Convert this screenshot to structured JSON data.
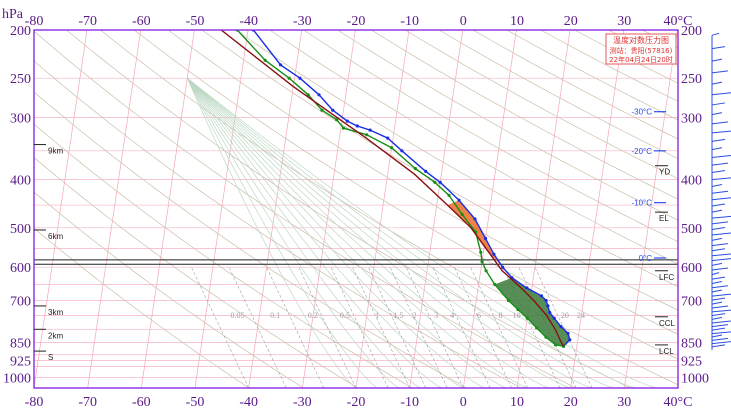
{
  "chart_data": {
    "type": "line",
    "title": "温度对数压力图",
    "station_label": "测站：贵阳(57816)",
    "time_label": "22年04月24日20时",
    "x_unit": "°C",
    "y_unit": "hPa",
    "xlim": [
      -80,
      40
    ],
    "ylim": [
      1050,
      200
    ],
    "y_scale": "log",
    "x_ticks": [
      -80,
      -70,
      -60,
      -50,
      -40,
      -30,
      -20,
      -10,
      0,
      10,
      20,
      30,
      40
    ],
    "x_tick_labels": [
      "-80",
      "-70",
      "-60",
      "-50",
      "-40",
      "-30",
      "-20",
      "-10",
      "0",
      "10",
      "20",
      "30",
      "40°C"
    ],
    "y_ticks": [
      200,
      250,
      300,
      400,
      500,
      600,
      700,
      850,
      925,
      1000
    ],
    "y_tick_labels": [
      "200",
      "250",
      "300",
      "400",
      "500",
      "600",
      "700",
      "850",
      "925",
      "1000"
    ],
    "height_markers": [
      {
        "label": "9km",
        "p": 340
      },
      {
        "label": "6km",
        "p": 505
      },
      {
        "label": "3km",
        "p": 718
      },
      {
        "label": "2km",
        "p": 800
      },
      {
        "label": "S",
        "p": 885
      }
    ],
    "levels_right": [
      {
        "label": "YD",
        "p": 375
      },
      {
        "label": "EL",
        "p": 465
      },
      {
        "label": "LFC",
        "p": 610
      },
      {
        "label": "CCL",
        "p": 755
      },
      {
        "label": "LCL",
        "p": 860
      }
    ],
    "isotherm_labels": [
      {
        "label": "-30°C",
        "p": 292
      },
      {
        "label": "-20°C",
        "p": 350
      },
      {
        "label": "-10°C",
        "p": 445
      },
      {
        "label": "0°C",
        "p": 575
      }
    ],
    "mixing_ratio_labels": [
      "0.05",
      "0.1",
      "0.2",
      "0.5",
      "1",
      "1.5",
      "2",
      "3",
      "4",
      "6",
      "8",
      "10",
      "16",
      "20",
      "24"
    ],
    "freezing_band_hpa": [
      580,
      592
    ],
    "series": [
      {
        "name": "temperature",
        "color": "#1a2ee6",
        "points": [
          [
            -49,
            200
          ],
          [
            -43,
            235
          ],
          [
            -39,
            250
          ],
          [
            -35,
            270
          ],
          [
            -32,
            290
          ],
          [
            -29,
            305
          ],
          [
            -27,
            312
          ],
          [
            -24.5,
            318
          ],
          [
            -21,
            330
          ],
          [
            -18,
            350
          ],
          [
            -13,
            385
          ],
          [
            -10,
            405
          ],
          [
            -6,
            440
          ],
          [
            -2.5,
            480
          ],
          [
            0,
            525
          ],
          [
            2,
            565
          ],
          [
            4,
            600
          ],
          [
            6,
            630
          ],
          [
            9,
            660
          ],
          [
            12,
            685
          ],
          [
            13,
            700
          ],
          [
            13.5,
            718
          ],
          [
            14,
            740
          ],
          [
            15,
            760
          ],
          [
            16.5,
            790
          ],
          [
            18,
            815
          ],
          [
            18.5,
            840
          ],
          [
            17.5,
            865
          ]
        ]
      },
      {
        "name": "dewpoint",
        "color": "#168f16",
        "points": [
          [
            -52,
            200
          ],
          [
            -46,
            230
          ],
          [
            -41,
            250
          ],
          [
            -37,
            270
          ],
          [
            -34,
            290
          ],
          [
            -31,
            303
          ],
          [
            -29.5,
            315
          ],
          [
            -25,
            325
          ],
          [
            -20,
            345
          ],
          [
            -15,
            380
          ],
          [
            -11,
            405
          ],
          [
            -8,
            430
          ],
          [
            -5,
            470
          ],
          [
            -2,
            510
          ],
          [
            -0.5,
            560
          ],
          [
            0,
            585
          ],
          [
            1,
            610
          ],
          [
            3,
            650
          ],
          [
            6,
            700
          ],
          [
            8,
            730
          ],
          [
            10,
            760
          ],
          [
            12,
            795
          ],
          [
            14,
            830
          ],
          [
            16,
            860
          ],
          [
            17.5,
            865
          ]
        ]
      },
      {
        "name": "parcel",
        "color": "#8a1010",
        "points": [
          [
            -55,
            200
          ],
          [
            -40,
            260
          ],
          [
            -25,
            330
          ],
          [
            -15,
            390
          ],
          [
            -8,
            450
          ],
          [
            -3,
            500
          ],
          [
            1,
            560
          ],
          [
            4,
            610
          ],
          [
            8,
            660
          ],
          [
            11,
            705
          ],
          [
            13.5,
            750
          ],
          [
            15.5,
            800
          ],
          [
            17,
            850
          ],
          [
            17.5,
            865
          ]
        ]
      }
    ]
  }
}
